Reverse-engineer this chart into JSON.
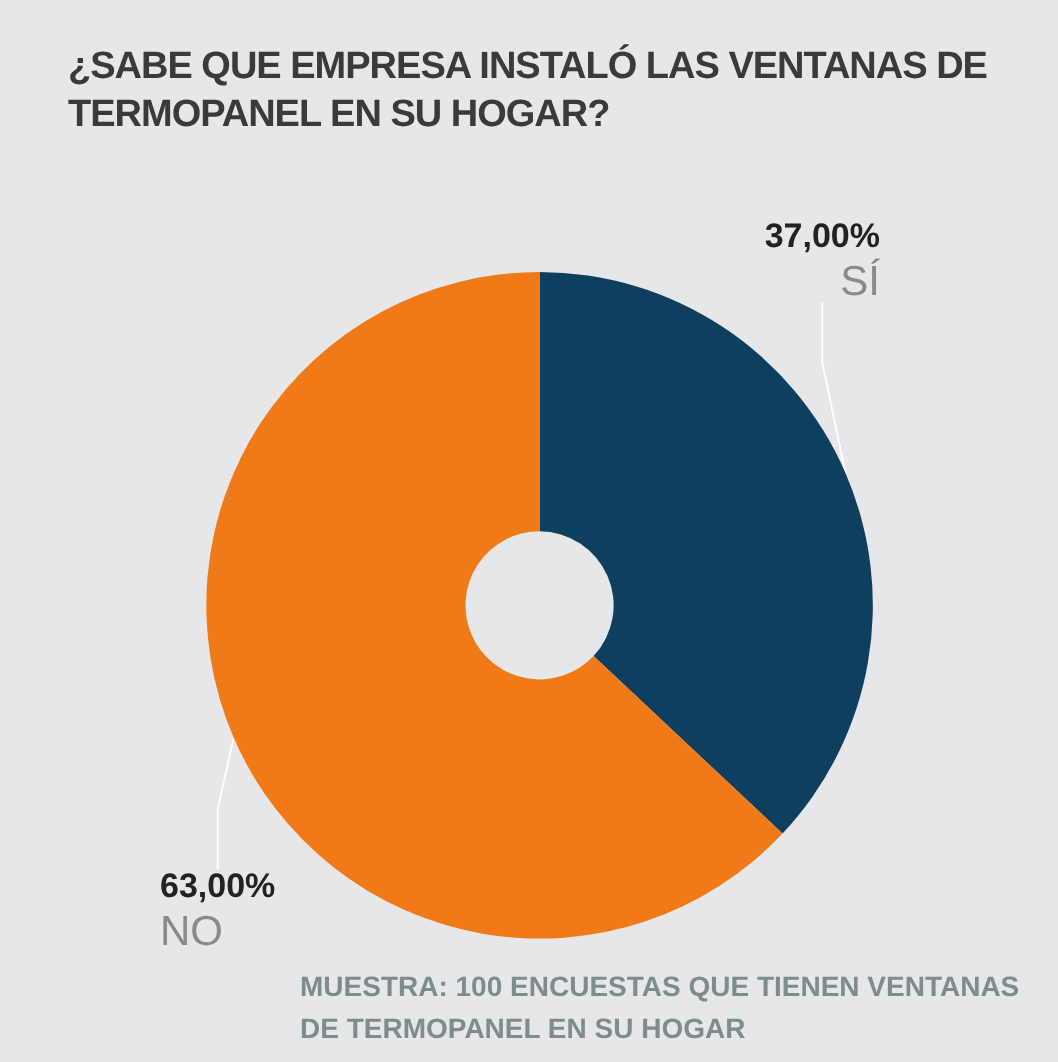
{
  "chart_data": {
    "type": "donut",
    "title": "¿SABE QUE EMPRESA INSTALÓ LAS VENTANAS DE TERMOPANEL EN SU HOGAR?",
    "categories": [
      "SÍ",
      "NO"
    ],
    "values": [
      37,
      63
    ],
    "value_labels": [
      "37,00%",
      "63,00%"
    ],
    "colors": [
      "#0f3f5f",
      "#ef7a17"
    ],
    "annotations": [
      "MUESTRA: 100 ENCUESTAS QUE TIENEN VENTANAS DE TERMOPANEL EN SU HOGAR"
    ]
  }
}
